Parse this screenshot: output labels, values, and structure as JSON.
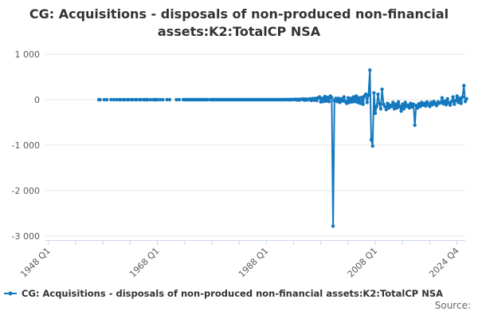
{
  "title": {
    "line1": "CG: Acquisitions - disposals of non-produced non-financial",
    "line2": "assets:K2:TotalCP NSA"
  },
  "legend": {
    "label": "CG: Acquisitions - disposals of non-produced non-financial assets:K2:TotalCP NSA",
    "marker": "line-with-dot"
  },
  "source": {
    "label": "Source:"
  },
  "chart_data": {
    "type": "line",
    "title": "CG: Acquisitions - disposals of non-produced non-financial assets:K2:TotalCP NSA",
    "xlabel": "",
    "ylabel": "",
    "ylim": [
      -3000,
      1000
    ],
    "grid": true,
    "legend_position": "bottom-left",
    "colors": {
      "series": "#1478be",
      "gridline": "#e6e6e6",
      "axis": "#ccd6eb",
      "axis_label": "#595959",
      "text": "#333333"
    },
    "y_axis": {
      "ticks": [
        {
          "value": 1000,
          "label": "1 000"
        },
        {
          "value": 0,
          "label": "0"
        },
        {
          "value": -1000,
          "label": "-1 000"
        },
        {
          "value": -2000,
          "label": "-2 000"
        },
        {
          "value": -3000,
          "label": "-3 000"
        }
      ]
    },
    "x_axis": {
      "unit": "quarters",
      "base_tick": "1948 Q1",
      "years_per_tick": 5,
      "tick_labels": [
        "1948 Q1",
        "",
        "",
        "",
        "1968 Q1",
        "",
        "",
        "",
        "1988 Q1",
        "",
        "",
        "",
        "2008 Q1",
        "",
        "",
        "2024 Q4"
      ]
    },
    "series": [
      {
        "name": "CG: Acquisitions - disposals of non-produced non-financial assets:K2:TotalCP NSA",
        "color": "#1478be",
        "start": "1957 Q1",
        "end": "2024 Q4",
        "frequency": "quarterly",
        "values": [
          null,
          0,
          0,
          null,
          null,
          0,
          null,
          0,
          null,
          null,
          0,
          null,
          0,
          null,
          0,
          null,
          0,
          0,
          null,
          0,
          0,
          null,
          0,
          0,
          null,
          0,
          0,
          null,
          0,
          0,
          null,
          0,
          0,
          null,
          0,
          0,
          0,
          0,
          null,
          0,
          null,
          0,
          0,
          0,
          0,
          null,
          0,
          null,
          0,
          null,
          null,
          0,
          null,
          0,
          null,
          null,
          null,
          null,
          0,
          null,
          0,
          null,
          null,
          0,
          0,
          0,
          0,
          0,
          0,
          0,
          0,
          0,
          0,
          0,
          0,
          0,
          0,
          0,
          0,
          0,
          0,
          0,
          null,
          0,
          0,
          0,
          0,
          0,
          0,
          0,
          0,
          0,
          0,
          0,
          0,
          0,
          0,
          0,
          0,
          0,
          0,
          0,
          0,
          0,
          0,
          0,
          0,
          0,
          0,
          0,
          0,
          0,
          0,
          0,
          0,
          0,
          0,
          0,
          0,
          0,
          0,
          0,
          0,
          0,
          0,
          0,
          0,
          0,
          0,
          0,
          0,
          0,
          0,
          0,
          0,
          0,
          0,
          0,
          0,
          0,
          5,
          -5,
          5,
          0,
          5,
          10,
          -5,
          10,
          -10,
          10,
          5,
          15,
          -10,
          15,
          -5,
          10,
          20,
          -15,
          25,
          -10,
          30,
          -20,
          40,
          60,
          -50,
          30,
          -40,
          70,
          -30,
          50,
          -40,
          80,
          40,
          -2780,
          -20,
          30,
          -40,
          30,
          -60,
          20,
          -30,
          60,
          -40,
          -80,
          40,
          -60,
          30,
          -50,
          60,
          -40,
          80,
          -60,
          40,
          -80,
          50,
          -100,
          80,
          120,
          -60,
          100,
          650,
          -880,
          -1020,
          150,
          -300,
          -150,
          120,
          -80,
          -200,
          230,
          -100,
          -150,
          -220,
          -80,
          -180,
          -120,
          -150,
          -60,
          -200,
          -100,
          -180,
          -50,
          -150,
          -250,
          -100,
          -200,
          -60,
          -150,
          -120,
          -180,
          -80,
          -160,
          -100,
          -560,
          -130,
          -180,
          -90,
          -150,
          -60,
          -120,
          -80,
          -140,
          -50,
          -100,
          -150,
          -60,
          -110,
          -40,
          -90,
          -130,
          -50,
          -80,
          -60,
          40,
          -90,
          -30,
          -110,
          20,
          -70,
          -120,
          -40,
          60,
          -100,
          -20,
          80,
          -60,
          30,
          -80,
          60,
          310,
          -40,
          20
        ]
      }
    ]
  }
}
